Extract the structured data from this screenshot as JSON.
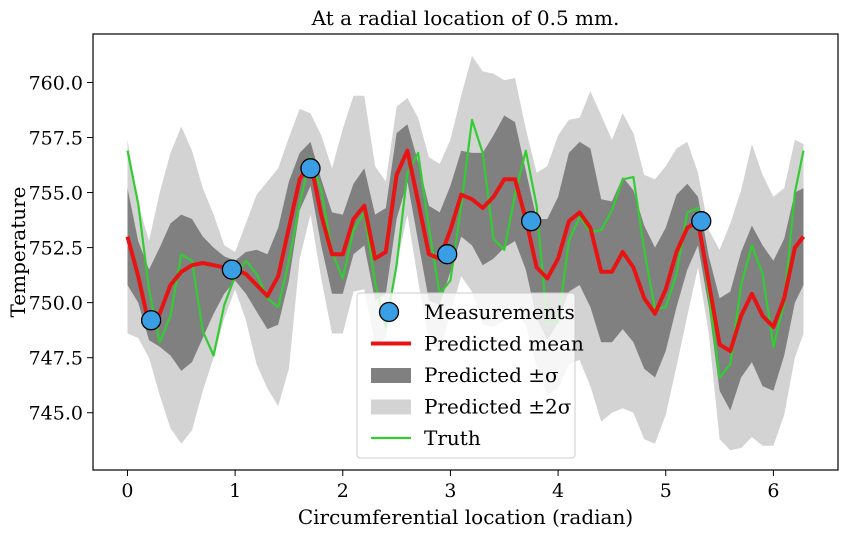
{
  "chart_data": {
    "type": "line",
    "title": "At a radial location of 0.5 mm.",
    "xlabel": "Circumferential location (radian)",
    "ylabel": "Temperature",
    "xlim": [
      -0.32,
      6.6
    ],
    "ylim": [
      742.4,
      762.2
    ],
    "xticks": [
      0,
      1,
      2,
      3,
      4,
      5,
      6
    ],
    "xtick_labels": [
      "0",
      "1",
      "2",
      "3",
      "4",
      "5",
      "6"
    ],
    "yticks": [
      745.0,
      747.5,
      750.0,
      752.5,
      755.0,
      757.5,
      760.0
    ],
    "ytick_labels": [
      "745.0",
      "747.5",
      "750.0",
      "752.5",
      "755.0",
      "757.5",
      "760.0"
    ],
    "grid": false,
    "legend_position": "bottom-center",
    "legend": [
      {
        "label": "Measurements",
        "kind": "marker",
        "color": "#3a9ee4"
      },
      {
        "label": "Predicted mean",
        "kind": "line",
        "color": "#e81414"
      },
      {
        "label": "Predicted ±σ",
        "kind": "patch",
        "color": "#808080"
      },
      {
        "label": "Predicted ±2σ",
        "kind": "patch",
        "color": "#d3d3d3"
      },
      {
        "label": "Truth",
        "kind": "line",
        "color": "#33cc33"
      }
    ],
    "x": [
      0.0,
      0.1,
      0.2,
      0.3,
      0.4,
      0.5,
      0.6,
      0.7,
      0.8,
      0.9,
      1.0,
      1.1,
      1.2,
      1.3,
      1.4,
      1.5,
      1.6,
      1.7,
      1.8,
      1.9,
      2.0,
      2.1,
      2.2,
      2.3,
      2.4,
      2.5,
      2.6,
      2.7,
      2.8,
      2.9,
      3.0,
      3.1,
      3.2,
      3.3,
      3.4,
      3.5,
      3.6,
      3.7,
      3.8,
      3.9,
      4.0,
      4.1,
      4.2,
      4.3,
      4.4,
      4.5,
      4.6,
      4.7,
      4.8,
      4.9,
      5.0,
      5.1,
      5.2,
      5.3,
      5.4,
      5.5,
      5.6,
      5.7,
      5.8,
      5.9,
      6.0,
      6.1,
      6.2,
      6.28
    ],
    "series": [
      {
        "name": "Predicted mean",
        "color": "#e81414",
        "values": [
          753.0,
          751.2,
          749.0,
          749.5,
          750.8,
          751.4,
          751.7,
          751.8,
          751.7,
          751.6,
          751.5,
          751.3,
          750.8,
          750.3,
          751.2,
          753.4,
          755.6,
          756.4,
          754.0,
          752.2,
          752.2,
          753.8,
          754.4,
          752.0,
          752.3,
          755.8,
          756.9,
          754.6,
          752.2,
          752.0,
          753.3,
          754.9,
          754.7,
          754.3,
          754.8,
          755.6,
          755.6,
          753.8,
          751.6,
          751.1,
          752.0,
          753.7,
          754.1,
          753.4,
          751.4,
          751.4,
          752.3,
          751.6,
          750.2,
          749.5,
          750.6,
          752.3,
          753.4,
          753.7,
          750.9,
          748.1,
          747.8,
          749.4,
          750.4,
          749.4,
          748.9,
          750.2,
          752.5,
          753.0
        ]
      },
      {
        "name": "Predicted ±σ",
        "color": "#808080",
        "lower": [
          750.8,
          750.0,
          748.3,
          748.0,
          747.6,
          746.9,
          747.3,
          748.4,
          749.5,
          750.4,
          751.0,
          750.4,
          749.6,
          748.8,
          749.0,
          751.0,
          754.2,
          755.3,
          752.6,
          750.4,
          750.4,
          752.2,
          752.6,
          750.1,
          750.4,
          753.8,
          755.5,
          752.8,
          750.1,
          749.9,
          751.4,
          753.0,
          752.6,
          751.7,
          752.0,
          752.5,
          752.8,
          751.5,
          749.3,
          748.3,
          749.1,
          750.5,
          750.8,
          749.8,
          748.2,
          748.2,
          748.8,
          748.2,
          747.0,
          746.6,
          747.8,
          749.8,
          751.5,
          752.6,
          749.8,
          746.0,
          745.1,
          746.6,
          747.3,
          746.2,
          746.0,
          747.6,
          750.0,
          750.8
        ],
        "upper": [
          755.2,
          752.8,
          751.5,
          752.5,
          753.6,
          754.0,
          753.8,
          753.0,
          752.5,
          752.1,
          751.9,
          752.3,
          752.4,
          752.2,
          753.4,
          755.5,
          756.8,
          757.3,
          755.6,
          754.1,
          754.0,
          755.4,
          756.1,
          754.0,
          754.3,
          757.7,
          758.1,
          756.4,
          754.4,
          754.1,
          755.3,
          756.9,
          756.8,
          756.8,
          757.6,
          758.5,
          758.2,
          756.0,
          753.8,
          753.8,
          754.8,
          756.8,
          757.3,
          757.0,
          754.7,
          754.6,
          755.7,
          755.1,
          753.5,
          752.5,
          753.4,
          754.9,
          755.4,
          754.8,
          752.1,
          750.2,
          750.5,
          752.3,
          753.5,
          752.6,
          751.9,
          752.9,
          755.0,
          755.2
        ]
      },
      {
        "name": "Predicted ±2σ",
        "color": "#d3d3d3",
        "lower": [
          748.6,
          748.4,
          747.5,
          745.8,
          744.3,
          743.6,
          744.2,
          746.0,
          747.5,
          749.3,
          750.6,
          749.2,
          747.2,
          746.1,
          745.3,
          747.0,
          752.0,
          754.0,
          751.1,
          748.6,
          748.6,
          750.5,
          750.6,
          748.1,
          748.4,
          751.7,
          754.0,
          751.0,
          748.2,
          747.8,
          749.5,
          751.2,
          750.5,
          749.0,
          748.9,
          749.2,
          749.6,
          749.0,
          747.1,
          745.8,
          746.1,
          747.2,
          747.4,
          746.2,
          744.6,
          745.0,
          745.2,
          745.0,
          743.8,
          743.6,
          744.9,
          747.1,
          749.4,
          751.6,
          748.6,
          743.8,
          743.3,
          743.4,
          743.9,
          743.5,
          743.5,
          744.9,
          747.5,
          748.6
        ],
        "upper": [
          757.4,
          754.5,
          752.8,
          755.0,
          756.8,
          758.0,
          756.9,
          755.2,
          754.0,
          752.6,
          752.3,
          753.6,
          754.9,
          755.5,
          756.1,
          757.5,
          758.8,
          758.6,
          757.6,
          756.1,
          757.9,
          759.4,
          759.4,
          756.2,
          755.5,
          758.9,
          759.3,
          758.4,
          756.6,
          756.3,
          757.4,
          759.4,
          761.2,
          760.5,
          760.4,
          760.1,
          760.2,
          757.9,
          755.9,
          756.2,
          757.6,
          758.3,
          758.4,
          759.6,
          758.5,
          757.4,
          758.6,
          757.7,
          755.8,
          755.6,
          756.2,
          757.0,
          757.3,
          755.9,
          753.3,
          752.4,
          753.6,
          755.1,
          757.2,
          755.8,
          754.8,
          755.2,
          757.4,
          757.2
        ]
      },
      {
        "name": "Truth",
        "color": "#33cc33",
        "values": [
          756.9,
          754.5,
          750.6,
          748.2,
          749.4,
          752.2,
          751.9,
          748.7,
          747.6,
          749.9,
          751.2,
          751.9,
          751.3,
          750.2,
          749.8,
          751.9,
          754.5,
          756.6,
          755.1,
          752.3,
          751.1,
          753.3,
          754.1,
          750.9,
          748.9,
          751.7,
          755.9,
          756.8,
          753.4,
          750.4,
          751.0,
          754.4,
          758.3,
          756.8,
          752.9,
          752.4,
          754.9,
          756.9,
          754.4,
          749.0,
          749.1,
          752.8,
          753.9,
          753.2,
          753.3,
          754.2,
          755.6,
          755.7,
          752.4,
          749.7,
          749.8,
          751.3,
          754.1,
          754.3,
          750.3,
          746.6,
          747.2,
          750.8,
          752.6,
          751.3,
          748.0,
          750.0,
          755.0,
          756.9
        ]
      },
      {
        "name": "Measurements",
        "color": "#3a9ee4",
        "points": [
          [
            0.22,
            749.2
          ],
          [
            0.97,
            751.5
          ],
          [
            1.7,
            756.1
          ],
          [
            2.97,
            752.2
          ],
          [
            3.75,
            753.7
          ],
          [
            5.33,
            753.7
          ]
        ]
      }
    ]
  }
}
